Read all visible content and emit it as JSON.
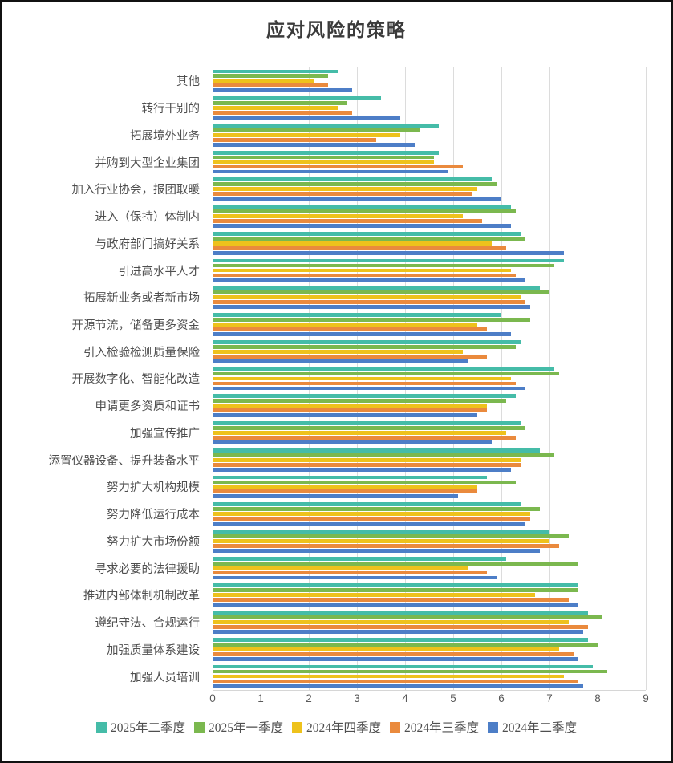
{
  "chart_data": {
    "type": "bar",
    "orientation": "horizontal",
    "title": "应对风险的策略",
    "xlabel": "",
    "ylabel": "",
    "grid": true,
    "legend_position": "bottom",
    "x_axis": {
      "min": 0,
      "max": 9,
      "ticks": [
        0,
        1,
        2,
        3,
        4,
        5,
        6,
        7,
        8,
        9
      ]
    },
    "categories_top_to_bottom": true,
    "categories": [
      "其他",
      "转行干别的",
      "拓展境外业务",
      "并购到大型企业集团",
      "加入行业协会，报团取暖",
      "进入（保持）体制内",
      "与政府部门搞好关系",
      "引进高水平人才",
      "拓展新业务或者新市场",
      "开源节流，储备更多资金",
      "引入检验检测质量保险",
      "开展数字化、智能化改造",
      "申请更多资质和证书",
      "加强宣传推广",
      "添置仪器设备、提升装备水平",
      "努力扩大机构规模",
      "努力降低运行成本",
      "努力扩大市场份额",
      "寻求必要的法律援助",
      "推进内部体制机制改革",
      "遵纪守法、合规运行",
      "加强质量体系建设",
      "加强人员培训"
    ],
    "series": [
      {
        "name": "2025年二季度",
        "color": "#45BCA8",
        "values": [
          2.6,
          3.5,
          4.7,
          4.7,
          5.8,
          6.2,
          6.4,
          7.3,
          6.8,
          6.0,
          6.4,
          7.1,
          6.3,
          6.4,
          6.8,
          5.7,
          6.4,
          7.0,
          6.1,
          7.6,
          7.8,
          7.8,
          7.9
        ]
      },
      {
        "name": "2025年一季度",
        "color": "#7BB84F",
        "values": [
          2.4,
          2.8,
          4.3,
          4.6,
          5.9,
          6.3,
          6.5,
          7.1,
          7.0,
          6.6,
          6.3,
          7.2,
          6.1,
          6.5,
          7.1,
          6.3,
          6.8,
          7.4,
          7.6,
          7.6,
          8.1,
          8.0,
          8.2
        ]
      },
      {
        "name": "2024年四季度",
        "color": "#EEC21C",
        "values": [
          2.1,
          2.6,
          3.9,
          4.6,
          5.5,
          5.2,
          5.8,
          6.2,
          6.4,
          5.5,
          5.2,
          6.2,
          5.7,
          6.1,
          6.4,
          5.5,
          6.6,
          7.0,
          5.3,
          6.7,
          7.4,
          7.2,
          7.3
        ]
      },
      {
        "name": "2024年三季度",
        "color": "#EA8A3D",
        "values": [
          2.4,
          2.9,
          3.4,
          5.2,
          5.4,
          5.6,
          6.1,
          6.3,
          6.5,
          5.7,
          5.7,
          6.3,
          5.7,
          6.3,
          6.4,
          5.5,
          6.6,
          7.2,
          5.7,
          7.4,
          7.8,
          7.5,
          7.6
        ]
      },
      {
        "name": "2024年二季度",
        "color": "#4D7EC7",
        "values": [
          2.9,
          3.9,
          4.2,
          4.9,
          6.0,
          6.2,
          7.3,
          6.5,
          6.6,
          6.2,
          5.3,
          6.5,
          5.5,
          5.8,
          6.2,
          5.1,
          6.5,
          6.8,
          5.9,
          7.6,
          7.7,
          7.6,
          7.7
        ]
      }
    ],
    "colors": {
      "gridline": "#DCDCDC",
      "axis_text": "#595959",
      "label_text": "#4F4F4F",
      "title_text": "#3B3B3B"
    }
  }
}
